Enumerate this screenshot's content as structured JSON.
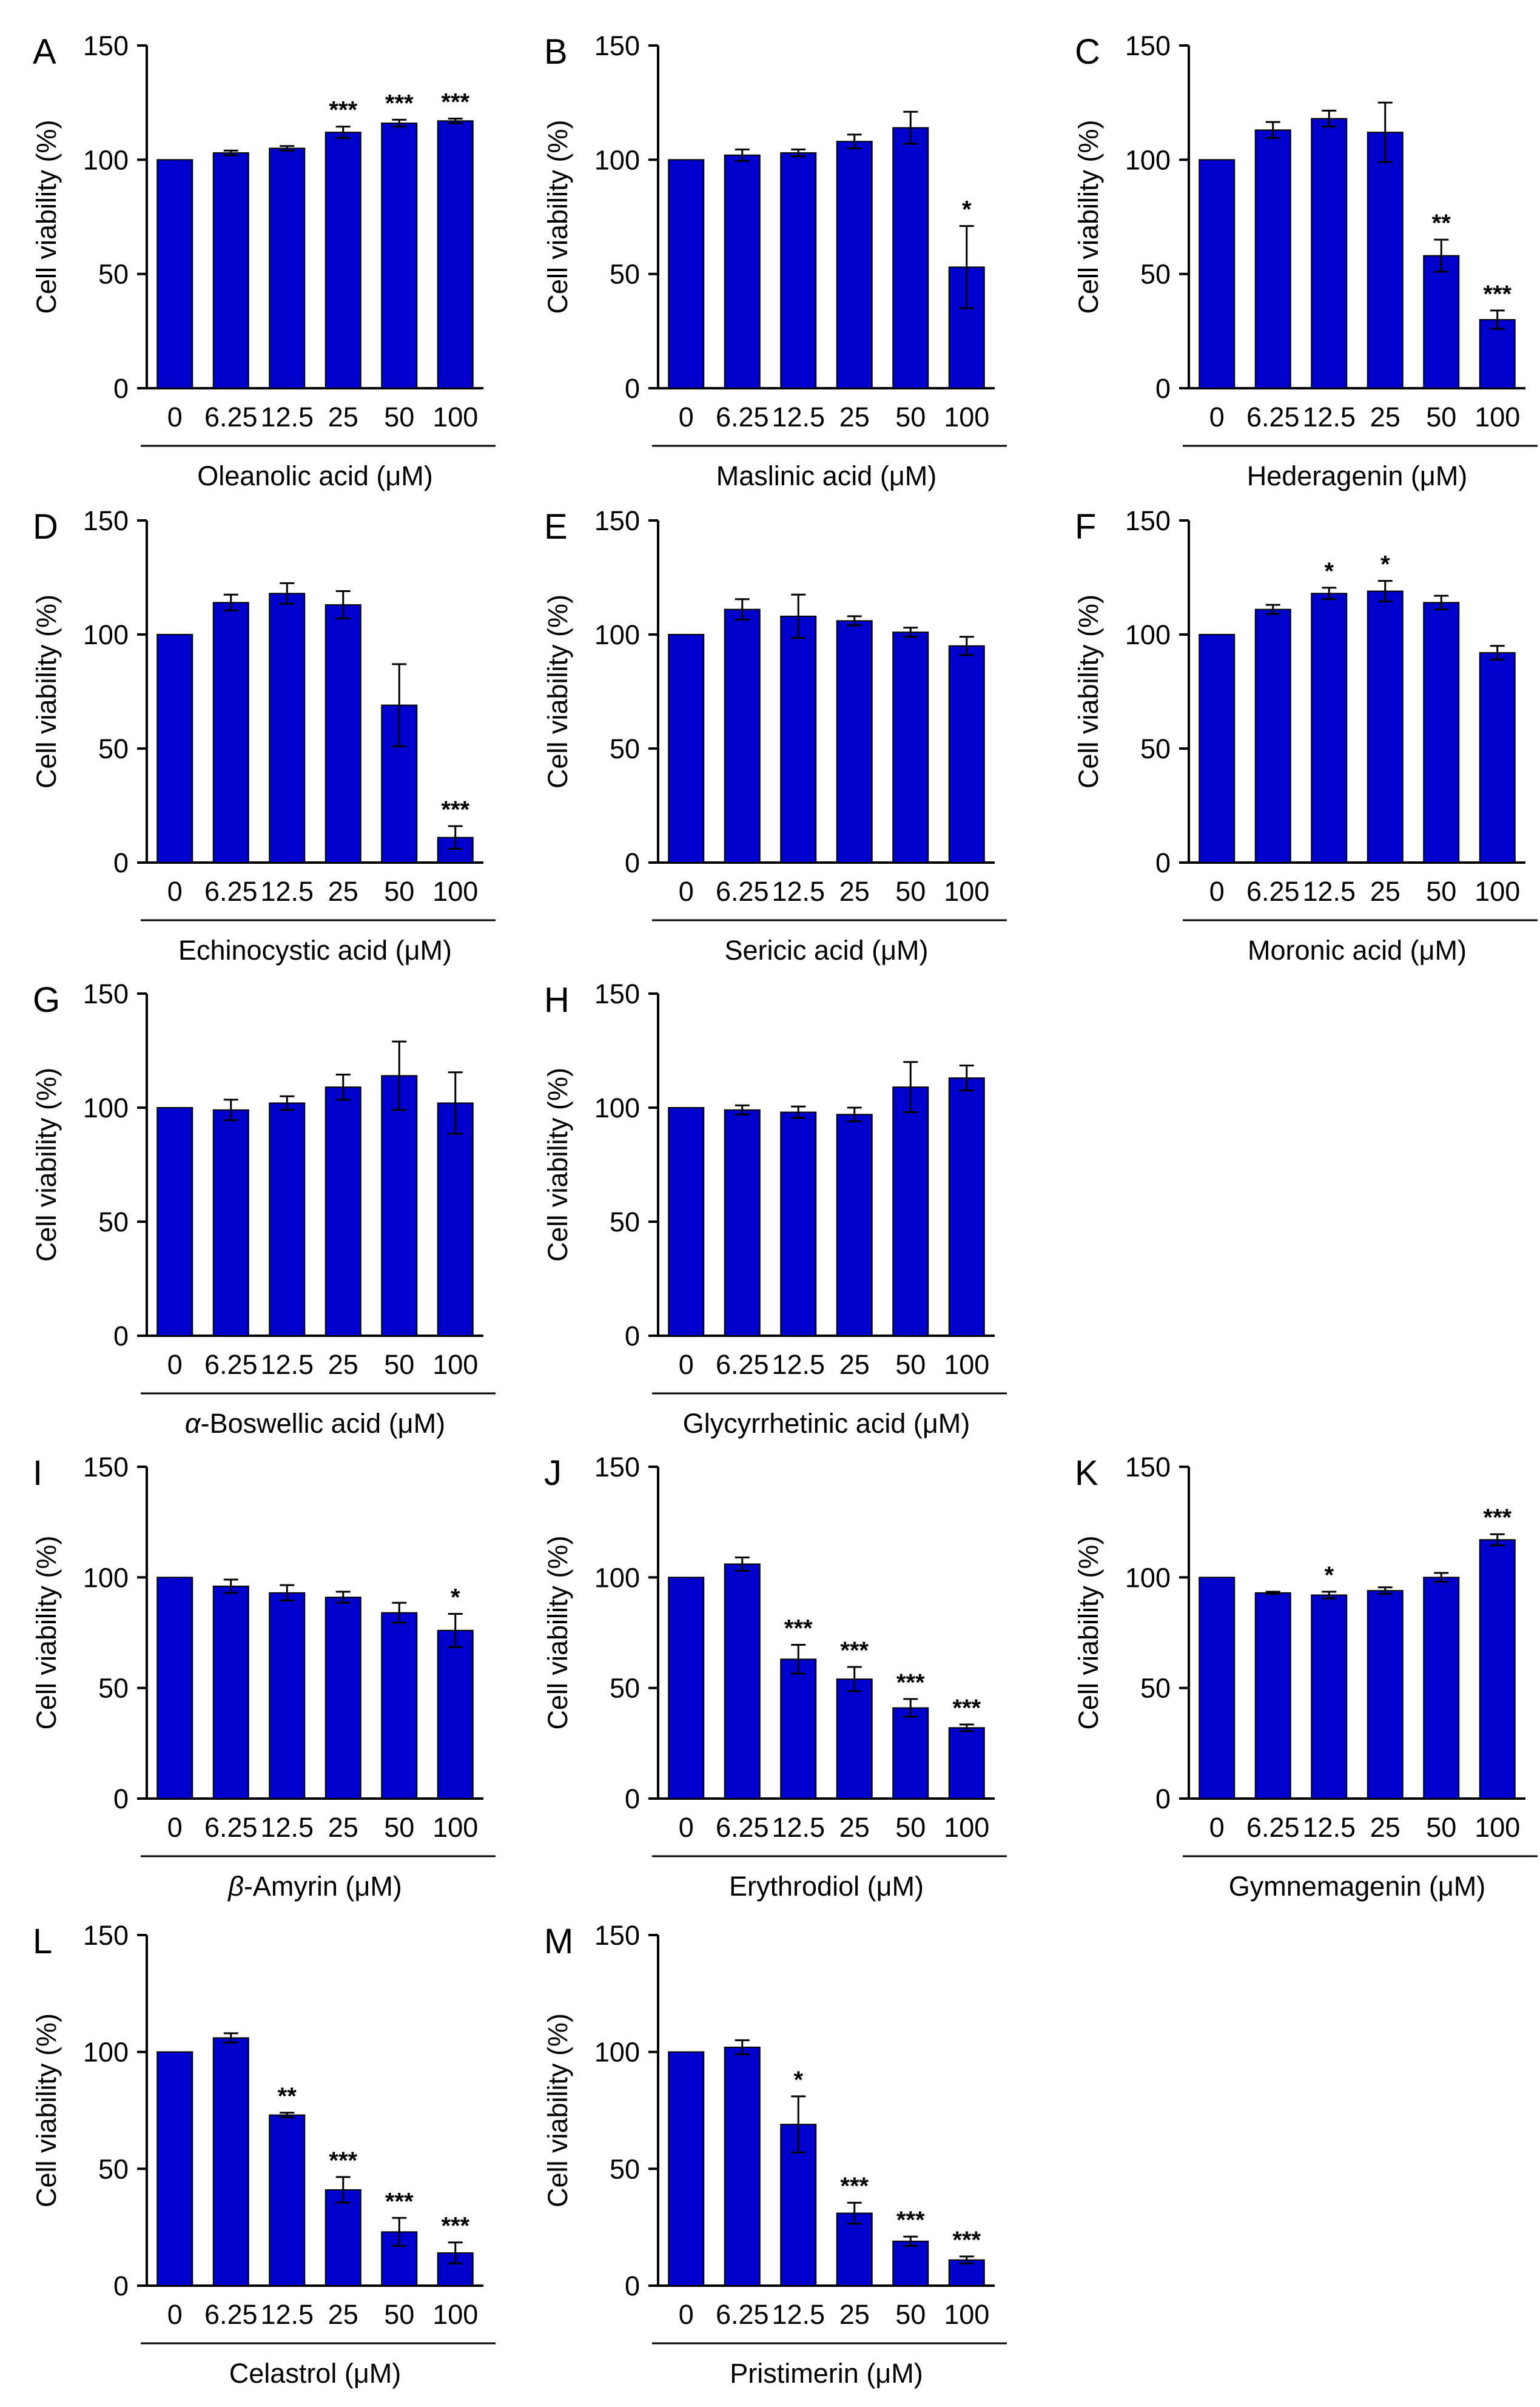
{
  "figure": {
    "bar_color": "#0000CC",
    "axis_color": "#000000"
  },
  "chart_data": [
    {
      "panel": "A",
      "type": "bar",
      "ylabel": "Cell viability (%)",
      "xlabel": "Oleanolic acid (μM)",
      "xlabel_italic_prefix": "",
      "ylim": [
        0,
        150
      ],
      "yticks": [
        0,
        50,
        100,
        150
      ],
      "categories": [
        "0",
        "6.25",
        "12.5",
        "25",
        "50",
        "100"
      ],
      "values": [
        100,
        103,
        105,
        112,
        116,
        117
      ],
      "errors": [
        0,
        1,
        1,
        2.5,
        1.5,
        1
      ],
      "significance": [
        "",
        "",
        "",
        "***",
        "***",
        "***"
      ]
    },
    {
      "panel": "B",
      "type": "bar",
      "ylabel": "Cell viability (%)",
      "xlabel": "Maslinic acid (μM)",
      "xlabel_italic_prefix": "",
      "ylim": [
        0,
        150
      ],
      "yticks": [
        0,
        50,
        100,
        150
      ],
      "categories": [
        "0",
        "6.25",
        "12.5",
        "25",
        "50",
        "100"
      ],
      "values": [
        100,
        102,
        103,
        108,
        114,
        53
      ],
      "errors": [
        0,
        2.5,
        1.5,
        3,
        7,
        18
      ],
      "significance": [
        "",
        "",
        "",
        "",
        "",
        "*"
      ]
    },
    {
      "panel": "C",
      "type": "bar",
      "ylabel": "Cell viability (%)",
      "xlabel": "Hederagenin (μM)",
      "xlabel_italic_prefix": "",
      "ylim": [
        0,
        150
      ],
      "yticks": [
        0,
        50,
        100,
        150
      ],
      "categories": [
        "0",
        "6.25",
        "12.5",
        "25",
        "50",
        "100"
      ],
      "values": [
        100,
        113,
        118,
        112,
        58,
        30
      ],
      "errors": [
        0,
        3.5,
        3.5,
        13,
        7,
        4
      ],
      "significance": [
        "",
        "",
        "",
        "",
        "**",
        "***"
      ]
    },
    {
      "panel": "D",
      "type": "bar",
      "ylabel": "Cell viability (%)",
      "xlabel": "Echinocystic acid (μM)",
      "xlabel_italic_prefix": "",
      "ylim": [
        0,
        150
      ],
      "yticks": [
        0,
        50,
        100,
        150
      ],
      "categories": [
        "0",
        "6.25",
        "12.5",
        "25",
        "50",
        "100"
      ],
      "values": [
        100,
        114,
        118,
        113,
        69,
        11
      ],
      "errors": [
        0,
        3.5,
        4.5,
        6,
        18,
        5
      ],
      "significance": [
        "",
        "",
        "",
        "",
        "",
        "***"
      ]
    },
    {
      "panel": "E",
      "type": "bar",
      "ylabel": "Cell viability (%)",
      "xlabel": "Sericic acid (μM)",
      "xlabel_italic_prefix": "",
      "ylim": [
        0,
        150
      ],
      "yticks": [
        0,
        50,
        100,
        150
      ],
      "categories": [
        "0",
        "6.25",
        "12.5",
        "25",
        "50",
        "100"
      ],
      "values": [
        100,
        111,
        108,
        106,
        101,
        95
      ],
      "errors": [
        0,
        4.5,
        9.5,
        2,
        2,
        4
      ],
      "significance": [
        "",
        "",
        "",
        "",
        "",
        ""
      ]
    },
    {
      "panel": "F",
      "type": "bar",
      "ylabel": "Cell viability (%)",
      "xlabel": "Moronic acid (μM)",
      "xlabel_italic_prefix": "",
      "ylim": [
        0,
        150
      ],
      "yticks": [
        0,
        50,
        100,
        150
      ],
      "categories": [
        "0",
        "6.25",
        "12.5",
        "25",
        "50",
        "100"
      ],
      "values": [
        100,
        111,
        118,
        119,
        114,
        92
      ],
      "errors": [
        0,
        2,
        2.5,
        4.5,
        3,
        3
      ],
      "significance": [
        "",
        "",
        "*",
        "*",
        "",
        ""
      ]
    },
    {
      "panel": "G",
      "type": "bar",
      "ylabel": "Cell viability (%)",
      "xlabel": "-Boswellic acid (μM)",
      "xlabel_italic_prefix": "α",
      "ylim": [
        0,
        150
      ],
      "yticks": [
        0,
        50,
        100,
        150
      ],
      "categories": [
        "0",
        "6.25",
        "12.5",
        "25",
        "50",
        "100"
      ],
      "values": [
        100,
        99,
        102,
        109,
        114,
        102
      ],
      "errors": [
        0,
        4.5,
        3,
        5.5,
        15,
        13.5
      ],
      "significance": [
        "",
        "",
        "",
        "",
        "",
        ""
      ]
    },
    {
      "panel": "H",
      "type": "bar",
      "ylabel": "Cell viability (%)",
      "xlabel": "Glycyrrhetinic acid (μM)",
      "xlabel_italic_prefix": "",
      "ylim": [
        0,
        150
      ],
      "yticks": [
        0,
        50,
        100,
        150
      ],
      "categories": [
        "0",
        "6.25",
        "12.5",
        "25",
        "50",
        "100"
      ],
      "values": [
        100,
        99,
        98,
        97,
        109,
        113
      ],
      "errors": [
        0,
        2,
        2.5,
        3,
        11,
        5.5
      ],
      "significance": [
        "",
        "",
        "",
        "",
        "",
        ""
      ]
    },
    {
      "panel": "I",
      "type": "bar",
      "ylabel": "Cell viability (%)",
      "xlabel": "-Amyrin (μM)",
      "xlabel_italic_prefix": "β",
      "ylim": [
        0,
        150
      ],
      "yticks": [
        0,
        50,
        100,
        150
      ],
      "categories": [
        "0",
        "6.25",
        "12.5",
        "25",
        "50",
        "100"
      ],
      "values": [
        100,
        96,
        93,
        91,
        84,
        76
      ],
      "errors": [
        0,
        3,
        3.5,
        2.5,
        4.5,
        7.5
      ],
      "significance": [
        "",
        "",
        "",
        "",
        "",
        "*"
      ]
    },
    {
      "panel": "J",
      "type": "bar",
      "ylabel": "Cell viability (%)",
      "xlabel": "Erythrodiol (μM)",
      "xlabel_italic_prefix": "",
      "ylim": [
        0,
        150
      ],
      "yticks": [
        0,
        50,
        100,
        150
      ],
      "categories": [
        "0",
        "6.25",
        "12.5",
        "25",
        "50",
        "100"
      ],
      "values": [
        100,
        106,
        63,
        54,
        41,
        32
      ],
      "errors": [
        0,
        3,
        6.5,
        5.5,
        4,
        1.5
      ],
      "significance": [
        "",
        "",
        "***",
        "***",
        "***",
        "***"
      ]
    },
    {
      "panel": "K",
      "type": "bar",
      "ylabel": "Cell viability (%)",
      "xlabel": "Gymnemagenin (μM)",
      "xlabel_italic_prefix": "",
      "ylim": [
        0,
        150
      ],
      "yticks": [
        0,
        50,
        100,
        150
      ],
      "categories": [
        "0",
        "6.25",
        "12.5",
        "25",
        "50",
        "100"
      ],
      "values": [
        100,
        93,
        92,
        94,
        100,
        117
      ],
      "errors": [
        0,
        0.5,
        1.5,
        1.5,
        2,
        2.5
      ],
      "significance": [
        "",
        "",
        "*",
        "",
        "",
        "***"
      ]
    },
    {
      "panel": "L",
      "type": "bar",
      "ylabel": "Cell viability (%)",
      "xlabel": "Celastrol (μM)",
      "xlabel_italic_prefix": "",
      "ylim": [
        0,
        150
      ],
      "yticks": [
        0,
        50,
        100,
        150
      ],
      "categories": [
        "0",
        "6.25",
        "12.5",
        "25",
        "50",
        "100"
      ],
      "values": [
        100,
        106,
        73,
        41,
        23,
        14
      ],
      "errors": [
        0,
        2,
        1,
        5.5,
        6,
        4.5
      ],
      "significance": [
        "",
        "",
        "**",
        "***",
        "***",
        "***"
      ]
    },
    {
      "panel": "M",
      "type": "bar",
      "ylabel": "Cell viability (%)",
      "xlabel": "Pristimerin (μM)",
      "xlabel_italic_prefix": "",
      "ylim": [
        0,
        150
      ],
      "yticks": [
        0,
        50,
        100,
        150
      ],
      "categories": [
        "0",
        "6.25",
        "12.5",
        "25",
        "50",
        "100"
      ],
      "values": [
        100,
        102,
        69,
        31,
        19,
        11
      ],
      "errors": [
        0,
        3,
        12,
        4.5,
        2,
        1.5
      ],
      "significance": [
        "",
        "",
        "*",
        "***",
        "***",
        "***"
      ]
    }
  ]
}
